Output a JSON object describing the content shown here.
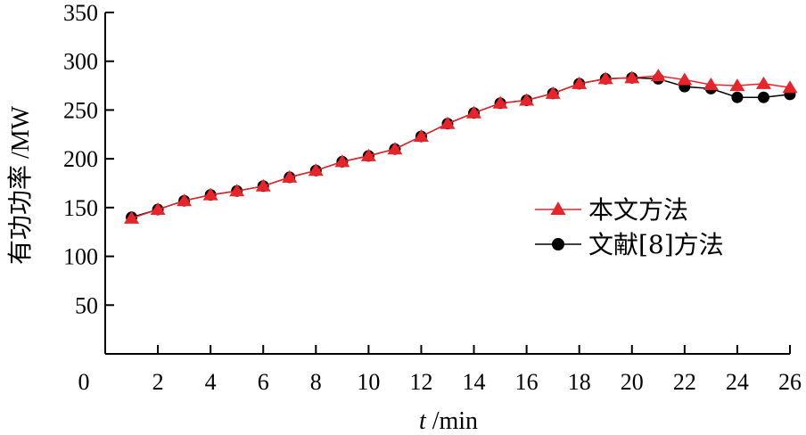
{
  "chart_data": {
    "type": "line",
    "title": "",
    "ylabel": "有功功率 /MW",
    "xlabel": {
      "var": "t",
      "unit": " /min"
    },
    "xlim": [
      0,
      26
    ],
    "ylim": [
      0,
      350
    ],
    "x_ticks": [
      0,
      2,
      4,
      6,
      8,
      10,
      12,
      14,
      16,
      18,
      20,
      22,
      24,
      26
    ],
    "y_ticks": [
      50,
      100,
      150,
      200,
      250,
      300,
      350
    ],
    "origin_label": "0",
    "grid": false,
    "legend_position": "right",
    "x": [
      1,
      2,
      3,
      4,
      5,
      6,
      7,
      8,
      9,
      10,
      11,
      12,
      13,
      14,
      15,
      16,
      17,
      18,
      19,
      20,
      21,
      22,
      23,
      24,
      25,
      26
    ],
    "series": [
      {
        "name": "本文方法",
        "color": "#e8232a",
        "marker": "triangle",
        "values": [
          139,
          148,
          157,
          163,
          167,
          172,
          181,
          188,
          197,
          203,
          210,
          223,
          236,
          247,
          257,
          260,
          267,
          277,
          282,
          283,
          285,
          281,
          276,
          275,
          277,
          273
        ]
      },
      {
        "name": "文献[8]方法",
        "color": "#000000",
        "marker": "circle",
        "values": [
          140,
          148,
          157,
          163,
          167,
          172,
          181,
          188,
          197,
          203,
          210,
          223,
          236,
          247,
          257,
          260,
          267,
          277,
          282,
          283,
          282,
          274,
          272,
          263,
          263,
          266
        ]
      }
    ]
  }
}
